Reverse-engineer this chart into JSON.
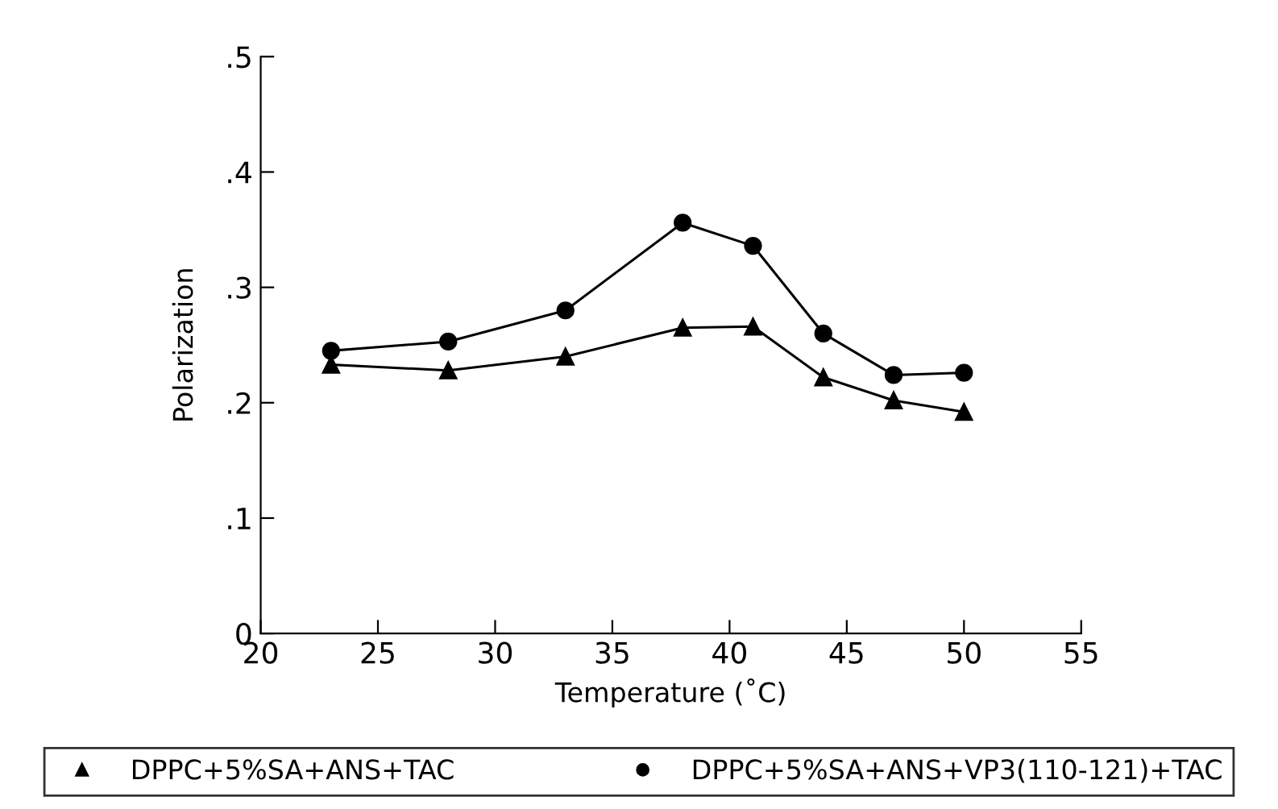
{
  "chart_data": {
    "type": "line",
    "xlabel": "Temperature (˚C)",
    "ylabel": "Polarization",
    "x": [
      23,
      28,
      33,
      38,
      41,
      44,
      47,
      50
    ],
    "series": [
      {
        "name": "DPPC+5%SA+ANS+TAC",
        "color": "#000000",
        "marker": "triangle",
        "values": [
          0.233,
          0.228,
          0.24,
          0.265,
          0.266,
          0.222,
          0.202,
          0.192
        ]
      },
      {
        "name": "DPPC+5%SA+ANS+VP3(110-121)+TAC",
        "color": "#000000",
        "marker": "circle",
        "values": [
          0.245,
          0.253,
          0.28,
          0.356,
          0.336,
          0.26,
          0.224,
          0.226
        ]
      }
    ],
    "xlim": [
      20,
      55
    ],
    "xticks": [
      20,
      25,
      30,
      35,
      40,
      45,
      50,
      55
    ],
    "ylim": [
      0,
      0.5
    ],
    "yticks": [
      0,
      {
        "value": 0.1,
        "label": ".1"
      },
      {
        "value": 0.2,
        "label": ".2"
      },
      {
        "value": 0.3,
        "label": ".3"
      },
      {
        "value": 0.4,
        "label": ".4"
      },
      {
        "value": 0.5,
        "label": ".5"
      }
    ],
    "grid": false,
    "legend": "bottom",
    "line_style": "solid"
  }
}
